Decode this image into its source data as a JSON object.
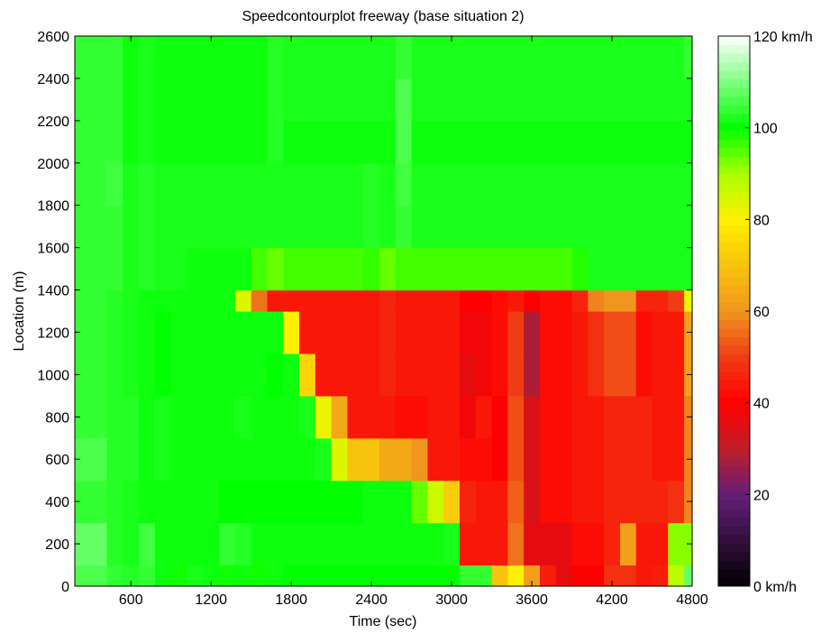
{
  "chart_data": {
    "type": "heatmap",
    "title": "Speedcontourplot freeway (base situation 2)",
    "xlabel": "Time (sec)",
    "ylabel": "Location (m)",
    "xlim": [
      180,
      4800
    ],
    "ylim": [
      0,
      2600
    ],
    "xticks": [
      600,
      1200,
      1800,
      2400,
      3000,
      3600,
      4200,
      4800
    ],
    "yticks": [
      0,
      200,
      400,
      600,
      800,
      1000,
      1200,
      1400,
      1600,
      1800,
      2000,
      2200,
      2400,
      2600
    ],
    "x_cell_seconds": 120,
    "location_bands": [
      [
        0,
        100
      ],
      [
        100,
        300
      ],
      [
        300,
        500
      ],
      [
        500,
        700
      ],
      [
        700,
        900
      ],
      [
        900,
        1100
      ],
      [
        1100,
        1300
      ],
      [
        1300,
        1400
      ],
      [
        1400,
        1600
      ],
      [
        1600,
        1800
      ],
      [
        1800,
        2000
      ],
      [
        2000,
        2200
      ],
      [
        2200,
        2400
      ],
      [
        2400,
        2600
      ]
    ],
    "speed_kmh": [
      [
        106,
        106,
        104,
        103,
        104,
        101,
        99,
        102,
        101,
        99,
        101,
        99,
        101,
        100,
        100,
        100,
        100,
        100,
        100,
        100,
        100,
        100,
        100,
        100,
        104,
        104,
        70,
        80,
        62,
        45,
        36,
        40,
        40,
        48,
        48,
        44,
        45,
        88,
        108
      ],
      [
        108,
        108,
        103,
        102,
        105,
        101,
        101,
        101,
        101,
        104,
        103,
        101,
        101,
        101,
        101,
        101,
        101,
        101,
        101,
        101,
        101,
        101,
        101,
        102,
        44,
        44,
        44,
        56,
        36,
        36,
        36,
        42,
        42,
        46,
        62,
        44,
        44,
        92,
        92
      ],
      [
        104,
        104,
        103,
        102,
        101,
        101,
        101,
        101,
        101,
        100,
        100,
        100,
        100,
        100,
        100,
        100,
        100,
        100,
        101,
        101,
        101,
        94,
        86,
        72,
        46,
        44,
        44,
        54,
        34,
        42,
        42,
        44,
        44,
        46,
        46,
        46,
        46,
        48,
        58
      ],
      [
        106,
        106,
        103,
        103,
        101,
        102,
        101,
        101,
        101,
        101,
        101,
        101,
        101,
        101,
        101,
        102,
        84,
        70,
        70,
        64,
        64,
        60,
        44,
        44,
        42,
        42,
        40,
        52,
        34,
        42,
        42,
        44,
        44,
        46,
        46,
        46,
        44,
        44,
        58
      ],
      [
        104,
        104,
        103,
        103,
        101,
        102,
        101,
        101,
        101,
        101,
        102,
        101,
        101,
        101,
        102,
        82,
        64,
        44,
        44,
        44,
        42,
        42,
        44,
        44,
        38,
        44,
        40,
        52,
        34,
        42,
        42,
        44,
        44,
        46,
        46,
        46,
        44,
        44,
        58
      ],
      [
        104,
        104,
        103,
        102,
        101,
        100,
        101,
        101,
        101,
        101,
        101,
        101,
        100,
        101,
        74,
        44,
        44,
        44,
        44,
        46,
        44,
        44,
        44,
        44,
        36,
        38,
        42,
        50,
        28,
        42,
        42,
        44,
        48,
        52,
        52,
        42,
        44,
        44,
        62
      ],
      [
        104,
        104,
        103,
        102,
        101,
        100,
        101,
        101,
        101,
        101,
        101,
        101,
        101,
        80,
        44,
        44,
        44,
        44,
        44,
        46,
        44,
        44,
        44,
        44,
        38,
        38,
        42,
        50,
        28,
        42,
        42,
        44,
        48,
        52,
        52,
        42,
        44,
        44,
        62
      ],
      [
        104,
        104,
        103,
        102,
        101,
        101,
        101,
        101,
        101,
        101,
        84,
        56,
        44,
        44,
        44,
        44,
        44,
        44,
        44,
        46,
        44,
        44,
        44,
        44,
        40,
        40,
        42,
        44,
        40,
        42,
        42,
        46,
        58,
        60,
        60,
        46,
        46,
        50,
        82
      ],
      [
        104,
        104,
        104,
        102,
        103,
        102,
        102,
        101,
        101,
        101,
        101,
        96,
        94,
        96,
        96,
        96,
        96,
        96,
        97,
        94,
        96,
        96,
        96,
        96,
        96,
        96,
        96,
        96,
        96,
        96,
        96,
        98,
        102,
        102,
        102,
        102,
        102,
        102,
        102
      ],
      [
        104,
        104,
        104,
        102,
        103,
        102,
        102,
        102,
        102,
        102,
        102,
        102,
        102,
        102,
        102,
        102,
        102,
        102,
        103,
        102,
        104,
        102,
        102,
        102,
        102,
        102,
        102,
        102,
        102,
        102,
        102,
        102,
        102,
        102,
        102,
        102,
        102,
        102,
        102
      ],
      [
        104,
        104,
        105,
        102,
        103,
        102,
        102,
        102,
        102,
        102,
        102,
        102,
        102,
        102,
        102,
        102,
        102,
        102,
        103,
        102,
        105,
        102,
        102,
        102,
        102,
        102,
        102,
        102,
        102,
        102,
        102,
        102,
        102,
        102,
        102,
        102,
        102,
        102,
        102
      ],
      [
        104,
        104,
        104,
        101,
        102,
        101,
        101,
        101,
        101,
        101,
        101,
        101,
        103,
        101,
        101,
        101,
        101,
        101,
        101,
        101,
        106,
        101,
        101,
        101,
        101,
        101,
        101,
        101,
        101,
        101,
        101,
        101,
        101,
        101,
        101,
        101,
        101,
        101,
        101
      ],
      [
        104,
        104,
        104,
        101,
        102,
        101,
        101,
        101,
        101,
        101,
        101,
        101,
        103,
        102,
        102,
        102,
        102,
        102,
        102,
        102,
        106,
        102,
        102,
        102,
        102,
        102,
        102,
        102,
        102,
        102,
        102,
        102,
        102,
        102,
        102,
        102,
        102,
        102,
        102
      ],
      [
        104,
        104,
        104,
        101,
        102,
        101,
        101,
        101,
        101,
        101,
        101,
        101,
        103,
        102,
        102,
        102,
        102,
        102,
        102,
        102,
        104,
        102,
        102,
        102,
        102,
        102,
        102,
        102,
        102,
        102,
        102,
        102,
        102,
        102,
        102,
        102,
        102,
        102,
        104
      ]
    ],
    "colorbar": {
      "range": [
        0,
        120
      ],
      "ticks": [
        "0 km/h",
        "20",
        "40",
        "60",
        "80",
        "100",
        "120 km/h"
      ]
    },
    "grid": false
  }
}
